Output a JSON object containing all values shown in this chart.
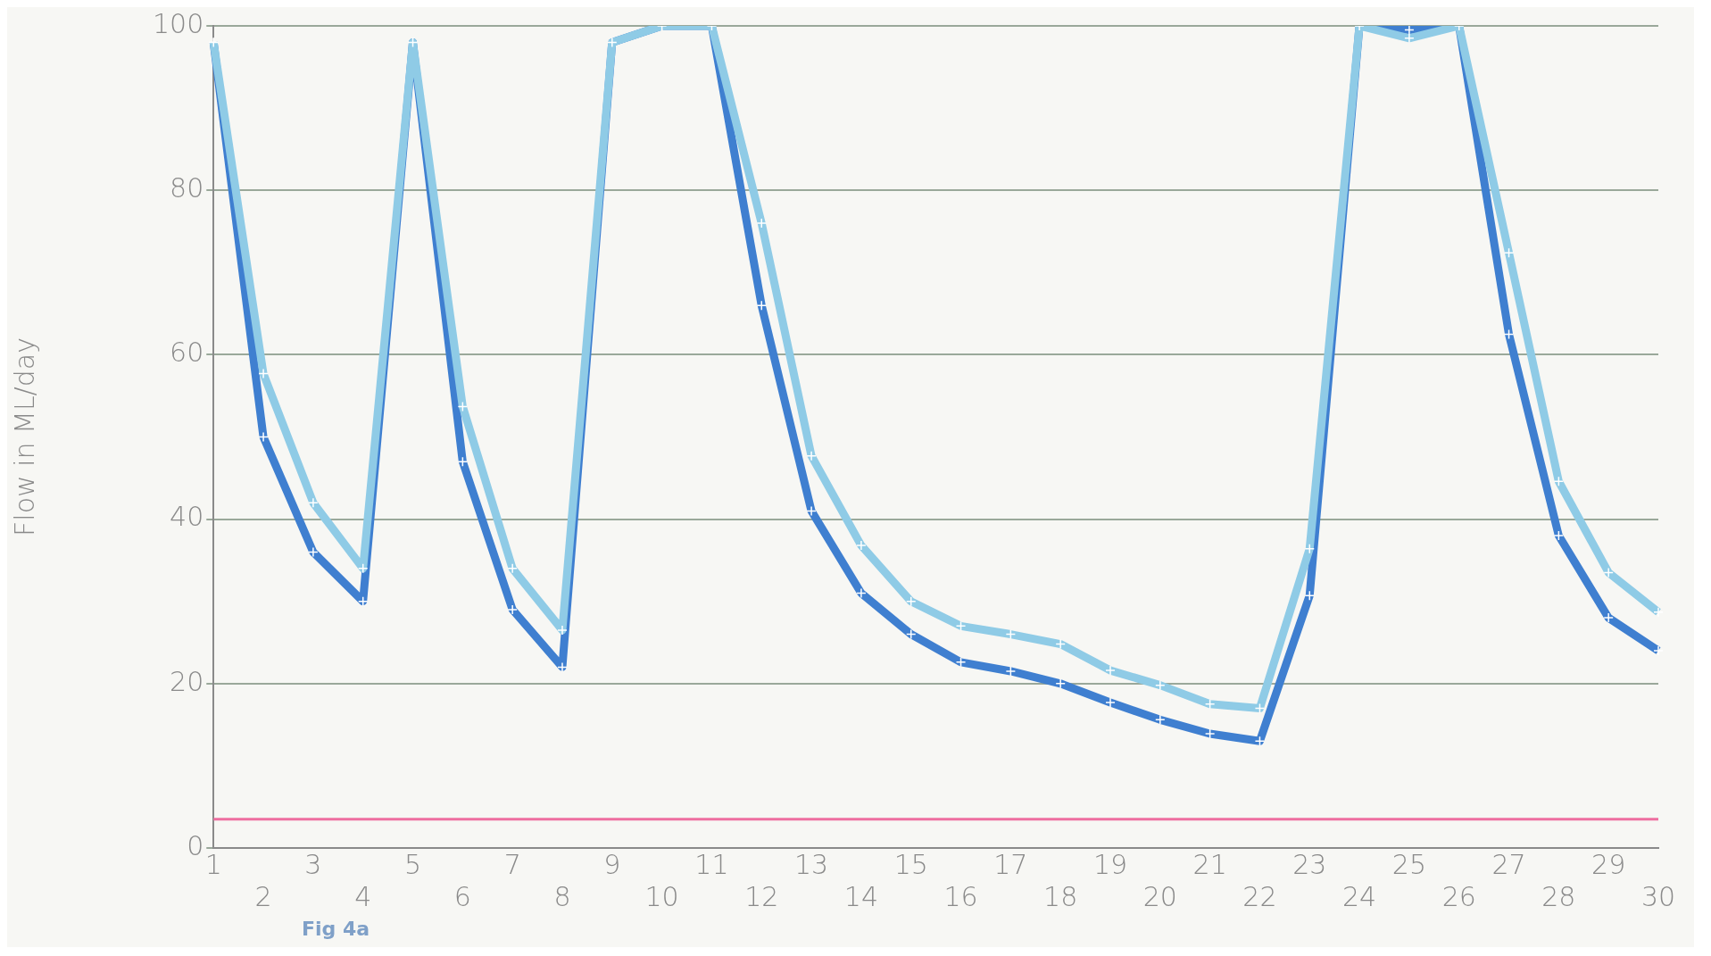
{
  "chart_data": {
    "type": "line",
    "ylabel": "Flow in ML/day",
    "annotations": [
      "Fig 4a"
    ],
    "categories": [
      "1",
      "2",
      "3",
      "4",
      "5",
      "6",
      "7",
      "8",
      "9",
      "10",
      "11",
      "12",
      "13",
      "14",
      "15",
      "16",
      "17",
      "18",
      "19",
      "20",
      "21",
      "22",
      "23",
      "24",
      "25",
      "26",
      "27",
      "28",
      "29",
      "30"
    ],
    "series": [
      {
        "color": "#8fcbe6",
        "values": [
          98,
          57.7,
          42,
          34,
          98,
          53.7,
          34,
          26.5,
          98,
          100,
          100,
          76,
          47.7,
          36.8,
          30,
          27,
          26,
          24.8,
          21.6,
          19.8,
          17.5,
          17,
          36.4,
          100,
          98.5,
          100,
          72.4,
          44.6,
          33.5,
          28.7
        ]
      },
      {
        "color": "#3f7fd0",
        "values": [
          98,
          50,
          36,
          30,
          98,
          47,
          29,
          22,
          98,
          100,
          100,
          66,
          41,
          31,
          26,
          22.6,
          21.5,
          20,
          17.7,
          15.6,
          13.9,
          13,
          30.7,
          100,
          99.5,
          100,
          62.5,
          38,
          28,
          24
        ]
      }
    ],
    "ylim": [
      0,
      100
    ],
    "yticks": [
      0,
      20,
      40,
      60,
      80,
      100
    ],
    "grid": "y",
    "marker": "cross",
    "line_style": "solid",
    "ref_lines": [
      {
        "axis": "y",
        "value": 3.5,
        "color": "#ee6fa0"
      }
    ]
  }
}
